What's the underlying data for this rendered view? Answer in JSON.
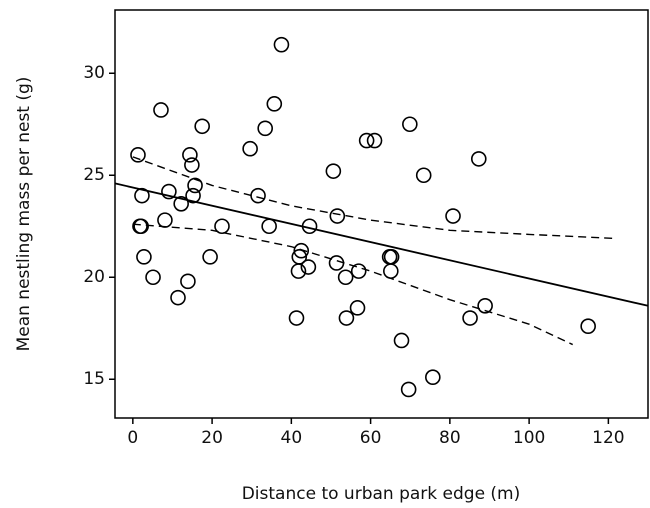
{
  "chart_data": {
    "type": "scatter",
    "x_label": "Distance to urban park edge (m)",
    "y_label": "Mean nestling mass per nest (g)",
    "xlim": [
      -4.5,
      130
    ],
    "ylim": [
      13.1,
      33.1
    ],
    "xticks": [
      0,
      20,
      40,
      60,
      80,
      100,
      120
    ],
    "yticks": [
      15,
      20,
      25,
      30
    ],
    "series": [
      {
        "style": "marker",
        "color": "#000000",
        "x": [
          1.3,
          2.3,
          1.8,
          2.1,
          2.8,
          5.1,
          7.1,
          8.1,
          9.1,
          11.4,
          12.2,
          13.9,
          14.4,
          14.9,
          15.7,
          15.2,
          17.5,
          19.5,
          22.5,
          29.6,
          31.6,
          33.4,
          34.4,
          35.7,
          37.5,
          41.3,
          41.8,
          42.0,
          42.5,
          44.6,
          44.3,
          50.6,
          51.6,
          51.4,
          53.9,
          53.7,
          56.7,
          57.0,
          59.0,
          61.0,
          64.8,
          65.3,
          65.1,
          67.8,
          69.9,
          69.6,
          73.4,
          75.7,
          80.8,
          85.1,
          87.3,
          88.9,
          114.9
        ],
        "values": [
          26.0,
          24.0,
          22.5,
          22.5,
          21.0,
          20.0,
          28.2,
          22.8,
          24.2,
          19.0,
          23.6,
          19.8,
          26.0,
          25.5,
          24.5,
          24.0,
          27.4,
          21.0,
          22.5,
          26.3,
          24.0,
          27.3,
          22.5,
          28.5,
          31.4,
          18.0,
          20.3,
          21.0,
          21.3,
          22.5,
          20.5,
          25.2,
          23.0,
          20.7,
          18.0,
          20.0,
          18.5,
          20.3,
          26.7,
          26.7,
          21.0,
          21.0,
          20.3,
          16.9,
          27.5,
          14.5,
          25.0,
          15.1,
          23.0,
          18.0,
          25.8,
          18.6,
          17.6
        ]
      },
      {
        "style": "solid",
        "color": "#000000",
        "x": [
          -4.5,
          130
        ],
        "values": [
          24.6,
          18.6
        ]
      },
      {
        "style": "dashed",
        "color": "#000000",
        "x": [
          0,
          20,
          40,
          60,
          80,
          100,
          122
        ],
        "values": [
          25.9,
          24.5,
          23.5,
          22.8,
          22.3,
          22.1,
          21.9
        ]
      },
      {
        "style": "dashed",
        "color": "#000000",
        "x": [
          0,
          20,
          40,
          60,
          80,
          100,
          111
        ],
        "values": [
          22.6,
          22.3,
          21.5,
          20.3,
          18.9,
          17.7,
          16.7
        ]
      }
    ]
  }
}
